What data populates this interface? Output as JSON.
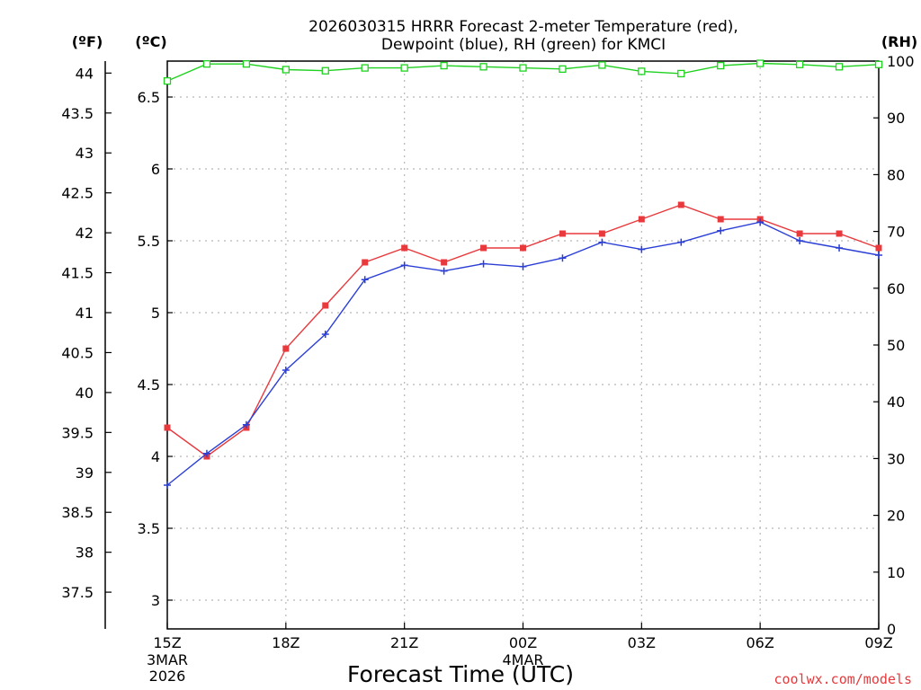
{
  "colors": {
    "temperature": "#e8393d",
    "dewpoint": "#2b3fd6",
    "rh": "#1fd21f",
    "credit": "#e8393d",
    "grid": "#b8b8b8"
  },
  "chart_data": {
    "type": "line",
    "title": [
      "2026030315 HRRR Forecast 2-meter Temperature (red),",
      "Dewpoint (blue), RH (green) for KMCI"
    ],
    "xlabel": "Forecast Time (UTC)",
    "credit": "coolwx.com/models",
    "x_hours": [
      0,
      1,
      2,
      3,
      4,
      5,
      6,
      7,
      8,
      9,
      10,
      11,
      12,
      13,
      14,
      15,
      16,
      17,
      18
    ],
    "x_ticks": [
      {
        "hour": 0,
        "label": "15Z",
        "sub1": "3MAR",
        "sub2": "2026"
      },
      {
        "hour": 3,
        "label": "18Z",
        "sub1": "",
        "sub2": ""
      },
      {
        "hour": 6,
        "label": "21Z",
        "sub1": "",
        "sub2": ""
      },
      {
        "hour": 9,
        "label": "00Z",
        "sub1": "4MAR",
        "sub2": ""
      },
      {
        "hour": 12,
        "label": "03Z",
        "sub1": "",
        "sub2": ""
      },
      {
        "hour": 15,
        "label": "06Z",
        "sub1": "",
        "sub2": ""
      },
      {
        "hour": 18,
        "label": "09Z",
        "sub1": "",
        "sub2": ""
      }
    ],
    "axes": {
      "celsius": {
        "label": "(ºC)",
        "ylim": [
          2.8,
          6.75
        ],
        "ticks": [
          "3",
          "3.5",
          "4",
          "4.5",
          "5",
          "5.5",
          "6",
          "6.5"
        ]
      },
      "fahrenheit": {
        "label": "(ºF)",
        "ticks": [
          "37.5",
          "38",
          "38.5",
          "39",
          "39.5",
          "40",
          "40.5",
          "41",
          "41.5",
          "42",
          "42.5",
          "43",
          "43.5",
          "44"
        ]
      },
      "rh": {
        "label": "(RH)",
        "ylim": [
          0,
          100
        ],
        "ticks": [
          "0",
          "10",
          "20",
          "30",
          "40",
          "50",
          "60",
          "70",
          "80",
          "90",
          "100"
        ]
      }
    },
    "series": [
      {
        "name": "Temperature",
        "unit": "C",
        "marker": "filled-square",
        "values": [
          4.2,
          4.0,
          4.2,
          4.75,
          5.05,
          5.35,
          5.45,
          5.35,
          5.45,
          5.45,
          5.55,
          5.55,
          5.65,
          5.75,
          5.65,
          5.65,
          5.55,
          5.55,
          5.45
        ]
      },
      {
        "name": "Dewpoint",
        "unit": "C",
        "marker": "plus",
        "values": [
          3.8,
          4.02,
          4.22,
          4.6,
          4.85,
          5.23,
          5.33,
          5.29,
          5.34,
          5.32,
          5.38,
          5.49,
          5.44,
          5.49,
          5.57,
          5.63,
          5.5,
          5.45,
          5.4
        ]
      },
      {
        "name": "RH",
        "unit": "%",
        "marker": "open-square",
        "values": [
          96.5,
          99.5,
          99.5,
          98.5,
          98.3,
          98.8,
          98.8,
          99.2,
          99.0,
          98.8,
          98.6,
          99.3,
          98.2,
          97.8,
          99.2,
          99.6,
          99.4,
          99.0,
          99.4
        ]
      }
    ]
  }
}
